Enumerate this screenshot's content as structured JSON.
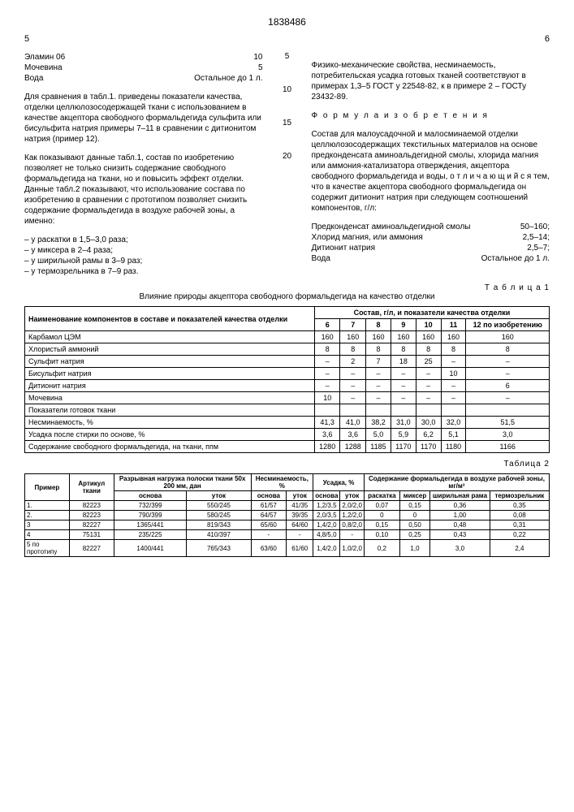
{
  "docNumber": "1838486",
  "leftPageNum": "5",
  "rightPageNum": "6",
  "lineNums": [
    "5",
    "10",
    "15",
    "20"
  ],
  "leftCol": {
    "ingredients": [
      {
        "name": "Эламин 06",
        "val": "10"
      },
      {
        "name": "Мочевина",
        "val": "5"
      },
      {
        "name": "Вода",
        "val": "Остальное до 1 л."
      }
    ],
    "para1": "Для сравнения в табл.1. приведены показатели качества, отделки целлюлозосодержащей ткани с использованием в качестве акцептора свободного формальдегида сульфита или бисульфита натрия примеры 7–11 в сравнении с дитионитом натрия (пример 12).",
    "para2": "Как показывают данные табл.1, состав по изобретению позволяет не только снизить содержание свободного формальдегида на ткани, но и повысить эффект отделки. Данные табл.2 показывают, что использование состава по изобретению в сравнении с прототипом позволяет снизить содержание формальдегида в воздухе рабочей зоны, а именно:",
    "bullets": [
      "– у раскатки в 1,5–3,0 раза;",
      "– у миксера в 2–4 раза;",
      "– у ширильной рамы в 3–9 раз;",
      "– у термозрельника в 7–9 раз."
    ]
  },
  "rightCol": {
    "para1": "Физико-механические свойства, несминаемость, потребительская усадка готовых тканей соответствуют в примерах 1,3–5 ГОСТ у 22548-82, к в примере 2 – ГОСТу 23432-89.",
    "formulaTitle": "Ф о р м у л а   и з о б р е т е н и я",
    "para2": "Состав для малоусадочной и малосминаемой отделки целлюлозосодержащих текстильных материалов на основе предконденсата аминоальдегидной смолы, хлорида магния или аммония-катализатора отверждения, акцептора свободного формальдегида и воды, о т л и ч а ю щ и й с я тем, что в качестве акцептора свободного формальдегида он содержит дитионит натрия при следующем соотношений компонентов, г/л:",
    "claim": [
      {
        "name": "Предконденсат аминоальдегидной смолы",
        "val": "50–160;"
      },
      {
        "name": "Хлорид магния, или аммония",
        "val": "2,5–14;"
      },
      {
        "name": "Дитионит натрия",
        "val": "2,5–7;"
      },
      {
        "name": "Вода",
        "val": "Остальное до 1 л."
      }
    ]
  },
  "table1": {
    "caption": "Т а б л и ц а  1",
    "subtitle": "Влияние природы акцептора свободного формальдегида на качество отделки",
    "header1": "Наименование компонентов в составе и показателей качества отделки",
    "header2": "Состав, г/л, и показатели качества отделки",
    "cols": [
      "6",
      "7",
      "8",
      "9",
      "10",
      "11",
      "12 по изобретению"
    ],
    "rows": [
      {
        "label": "Карбамол ЦЭМ",
        "vals": [
          "160",
          "160",
          "160",
          "160",
          "160",
          "160",
          "160"
        ]
      },
      {
        "label": "Хлористый аммоний",
        "vals": [
          "8",
          "8",
          "8",
          "8",
          "8",
          "8",
          "8"
        ]
      },
      {
        "label": "Сульфит натрия",
        "vals": [
          "–",
          "2",
          "7",
          "18",
          "25",
          "–",
          "–"
        ]
      },
      {
        "label": "Бисульфит натрия",
        "vals": [
          "–",
          "–",
          "–",
          "–",
          "–",
          "10",
          "–"
        ]
      },
      {
        "label": "Дитионит натрия",
        "vals": [
          "–",
          "–",
          "–",
          "–",
          "–",
          "–",
          "6"
        ]
      },
      {
        "label": "Мочевина",
        "vals": [
          "10",
          "–",
          "–",
          "–",
          "–",
          "–",
          "–"
        ]
      },
      {
        "label": "Показатели готовок ткани",
        "vals": [
          "",
          "",
          "",
          "",
          "",
          "",
          ""
        ]
      },
      {
        "label": "Несминаемость, %",
        "vals": [
          "41,3",
          "41,0",
          "38,2",
          "31,0",
          "30,0",
          "32,0",
          "51,5"
        ]
      },
      {
        "label": "Усадка после стирки по основе, %",
        "vals": [
          "3,6",
          "3,6",
          "5,0",
          "5,9",
          "6,2",
          "5,1",
          "3,0"
        ]
      },
      {
        "label": "Содержание свободного формальдегида, на ткани, ппм",
        "vals": [
          "1280",
          "1288",
          "1185",
          "1170",
          "1170",
          "1180",
          "1166"
        ]
      }
    ]
  },
  "table2": {
    "caption": "Таблица 2",
    "headers": {
      "primer": "Пример",
      "artikul": "Артикул ткани",
      "razryv": "Разрывная нагрузка полоски ткани 50x 200 мм, дан",
      "nesmin": "Несминаемость, %",
      "usadka": "Усадка, %",
      "formald": "Содержание формальдегида в воздухе рабочей зоны, мг/м³",
      "osnova": "основа",
      "utok": "уток",
      "raskatka": "раскатка",
      "mikser": "миксер",
      "shir": "ширильная рама",
      "termo": "термозрельник"
    },
    "rows": [
      {
        "n": "1.",
        "art": "82223",
        "ro": "732/399",
        "ru": "550/245",
        "no": "61/57",
        "nu": "41/35",
        "uo": "1,2/3,5",
        "uu": "2,0/2,0",
        "r": "0,07",
        "m": "0,15",
        "s": "0,36",
        "t": "0,35"
      },
      {
        "n": "2.",
        "art": "82223",
        "ro": "790/399",
        "ru": "580/245",
        "no": "64/57",
        "nu": "39/35",
        "uo": "2,0/3,5",
        "uu": "1,2/2,0",
        "r": "0",
        "m": "0",
        "s": "1,00",
        "t": "0,08"
      },
      {
        "n": "3",
        "art": "82227",
        "ro": "1365/441",
        "ru": "819/343",
        "no": "65/60",
        "nu": "64/60",
        "uo": "1,4/2,0",
        "uu": "0,8/2,0",
        "r": "0,15",
        "m": "0,50",
        "s": "0,48",
        "t": "0,31"
      },
      {
        "n": "4",
        "art": "75131",
        "ro": "235/225",
        "ru": "410/397",
        "no": "-",
        "nu": "-",
        "uo": "4,8/5,0",
        "uu": "-",
        "r": "0,10",
        "m": "0,25",
        "s": "0,43",
        "t": "0,22"
      },
      {
        "n": "5 по прототипу",
        "art": "82227",
        "ro": "1400/441",
        "ru": "765/343",
        "no": "63/60",
        "nu": "61/60",
        "uo": "1,4/2,0",
        "uu": "1,0/2,0",
        "r": "0,2",
        "m": "1,0",
        "s": "3,0",
        "t": "2,4"
      }
    ]
  }
}
